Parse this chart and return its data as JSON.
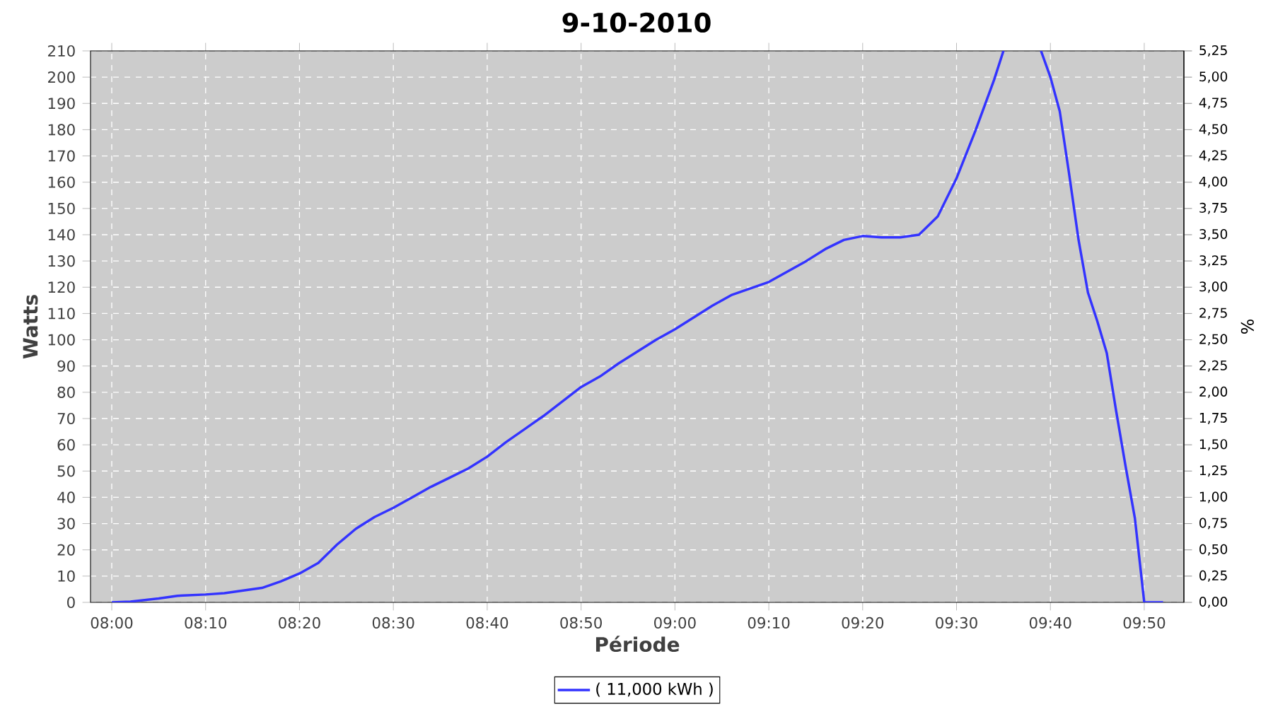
{
  "chart_data": {
    "type": "line",
    "title": "9-10-2010",
    "xlabel": "Période",
    "ylabel": "Watts",
    "y2label": "%",
    "x": [
      8.0,
      8.0333,
      8.0833,
      8.1167,
      8.1667,
      8.2,
      8.2333,
      8.2667,
      8.3,
      8.3333,
      8.3667,
      8.4,
      8.4333,
      8.4667,
      8.5,
      8.5333,
      8.5667,
      8.6,
      8.6333,
      8.6667,
      8.7,
      8.7333,
      8.7667,
      8.8,
      8.8333,
      8.8667,
      8.9,
      8.9333,
      8.9667,
      9.0,
      9.0667,
      9.1,
      9.1667,
      9.2,
      9.2333,
      9.2667,
      9.3,
      9.3333,
      9.3667,
      9.4,
      9.4333,
      9.4667,
      9.5,
      9.5333,
      9.5667,
      9.5833,
      9.6,
      9.6167,
      9.6333,
      9.65,
      9.6667,
      9.6833,
      9.7,
      9.7167,
      9.7333,
      9.75,
      9.7667,
      9.7833,
      9.8,
      9.8167,
      9.8333,
      9.8667
    ],
    "series": [
      {
        "name": "( 11,000 kWh )",
        "color": "#3333ff",
        "values": [
          0,
          0.3,
          1.5,
          2.5,
          3,
          3.5,
          4.5,
          5.5,
          8,
          11,
          15,
          22,
          28,
          32.5,
          36,
          40,
          44,
          47.5,
          51,
          55.5,
          61,
          66,
          71,
          76.5,
          82,
          86,
          91,
          95.5,
          100,
          104,
          113,
          117,
          122,
          126,
          130,
          134.5,
          138,
          139.5,
          139,
          139,
          140,
          147,
          161.5,
          179.5,
          199,
          210,
          null,
          null,
          null,
          210,
          200,
          187,
          163,
          138,
          118,
          107,
          95,
          73,
          52,
          32,
          0,
          0
        ]
      }
    ],
    "xlim": [
      7.9623,
      9.9037
    ],
    "xticks": [
      {
        "value": 8.0,
        "label": "08:00"
      },
      {
        "value": 8.166667,
        "label": "08:10"
      },
      {
        "value": 8.333333,
        "label": "08:20"
      },
      {
        "value": 8.5,
        "label": "08:30"
      },
      {
        "value": 8.666667,
        "label": "08:40"
      },
      {
        "value": 8.833333,
        "label": "08:50"
      },
      {
        "value": 9.0,
        "label": "09:00"
      },
      {
        "value": 9.166667,
        "label": "09:10"
      },
      {
        "value": 9.333333,
        "label": "09:20"
      },
      {
        "value": 9.5,
        "label": "09:30"
      },
      {
        "value": 9.666667,
        "label": "09:40"
      },
      {
        "value": 9.833333,
        "label": "09:50"
      }
    ],
    "ylim": [
      0,
      210
    ],
    "yticks": [
      0,
      10,
      20,
      30,
      40,
      50,
      60,
      70,
      80,
      90,
      100,
      110,
      120,
      130,
      140,
      150,
      160,
      170,
      180,
      190,
      200,
      210
    ],
    "y2lim": [
      0,
      5.25
    ],
    "y2ticks": [
      {
        "value": 0,
        "label": "0,00"
      },
      {
        "value": 0.25,
        "label": "0,25"
      },
      {
        "value": 0.5,
        "label": "0,50"
      },
      {
        "value": 0.75,
        "label": "0,75"
      },
      {
        "value": 1,
        "label": "1,00"
      },
      {
        "value": 1.25,
        "label": "1,25"
      },
      {
        "value": 1.5,
        "label": "1,50"
      },
      {
        "value": 1.75,
        "label": "1,75"
      },
      {
        "value": 2,
        "label": "2,00"
      },
      {
        "value": 2.25,
        "label": "2,25"
      },
      {
        "value": 2.5,
        "label": "2,50"
      },
      {
        "value": 2.75,
        "label": "2,75"
      },
      {
        "value": 3,
        "label": "3,00"
      },
      {
        "value": 3.25,
        "label": "3,25"
      },
      {
        "value": 3.5,
        "label": "3,50"
      },
      {
        "value": 3.75,
        "label": "3,75"
      },
      {
        "value": 4,
        "label": "4,00"
      },
      {
        "value": 4.25,
        "label": "4,25"
      },
      {
        "value": 4.5,
        "label": "4,50"
      },
      {
        "value": 4.75,
        "label": "4,75"
      },
      {
        "value": 5,
        "label": "5,00"
      },
      {
        "value": 5.25,
        "label": "5,25"
      }
    ],
    "grid": true,
    "legend": "bottom",
    "marker": "none",
    "line_style": "solid"
  }
}
